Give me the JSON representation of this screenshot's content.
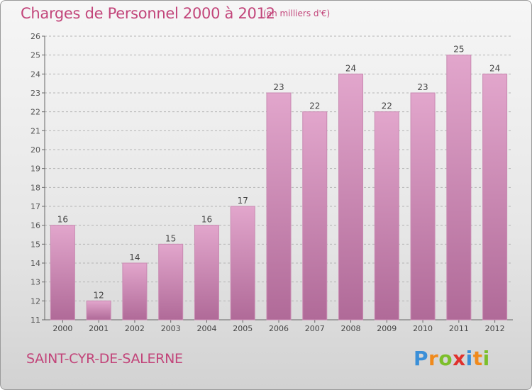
{
  "title": "Charges de Personnel 2000 à 2012",
  "subtitle": "(en milliers d'€)",
  "commune": "SAINT-CYR-DE-SALERNE",
  "logo": {
    "text": "Proxiti",
    "letters": [
      {
        "char": "P",
        "color": "#3a8fd8"
      },
      {
        "char": "r",
        "color": "#f08a1c"
      },
      {
        "char": "o",
        "color": "#7cbf2a"
      },
      {
        "char": "x",
        "color": "#e0312d"
      },
      {
        "char": "i",
        "color": "#3a8fd8"
      },
      {
        "char": "t",
        "color": "#f08a1c"
      },
      {
        "char": "i",
        "color": "#7cbf2a"
      }
    ]
  },
  "colors": {
    "bar_top": "#e2a6cc",
    "bar_bottom": "#b06a98",
    "text": "#c2457a",
    "grid": "#b4b4b4"
  },
  "chart_data": {
    "type": "bar",
    "categories": [
      "2000",
      "2001",
      "2002",
      "2003",
      "2004",
      "2005",
      "2006",
      "2007",
      "2008",
      "2009",
      "2010",
      "2011",
      "2012"
    ],
    "values": [
      16,
      12,
      14,
      15,
      16,
      17,
      23,
      22,
      24,
      22,
      23,
      25,
      24
    ],
    "ylim": [
      11,
      26
    ],
    "yticks": [
      11,
      12,
      13,
      14,
      15,
      16,
      17,
      18,
      19,
      20,
      21,
      22,
      23,
      24,
      25,
      26
    ],
    "grid": true,
    "data_labels": true
  }
}
